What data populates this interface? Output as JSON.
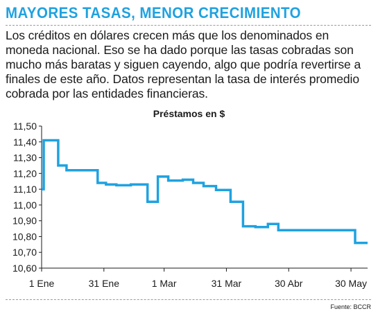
{
  "headline": "MAYORES TASAS, MENOR CRECIMIENTO",
  "intro": "Los créditos en dólares crecen más que los denominados en moneda nacional. Eso se ha dado porque las tasas cobradas son mucho más baratas y siguen cayendo, algo que podría revertirse a finales de este año. Datos representan la tasa de interés promedio cobrada por las entidades financieras.",
  "source": "Fuente: BCCR",
  "colors": {
    "headline": "#1fa2e0",
    "line": "#1fa2e0",
    "axis": "#1a1a1a"
  },
  "chart_data": {
    "type": "line",
    "title": "Préstamos en $",
    "xlabel": "",
    "ylabel": "",
    "ylim": [
      10.6,
      11.5
    ],
    "y_ticks": [
      "11,50",
      "11,40",
      "11,30",
      "11,20",
      "11,10",
      "11,00",
      "10,90",
      "10,80",
      "10,70",
      "10,60"
    ],
    "x_ticks": [
      "1 Ene",
      "31 Ene",
      "1 Mar",
      "31 Mar",
      "30 Abr",
      "30 May"
    ],
    "x_tick_days": [
      0,
      30,
      59,
      89,
      119,
      149
    ],
    "xlim_days": [
      0,
      157
    ],
    "grid": false,
    "series": [
      {
        "name": "",
        "points": [
          [
            0,
            11.1
          ],
          [
            1,
            11.41
          ],
          [
            4,
            11.41
          ],
          [
            5,
            11.41
          ],
          [
            6,
            11.41
          ],
          [
            7,
            11.41
          ],
          [
            8,
            11.25
          ],
          [
            9,
            11.25
          ],
          [
            10,
            11.25
          ],
          [
            11,
            11.25
          ],
          [
            12,
            11.22
          ],
          [
            13,
            11.22
          ],
          [
            14,
            11.22
          ],
          [
            15,
            11.22
          ],
          [
            16,
            11.22
          ],
          [
            17,
            11.22
          ],
          [
            18,
            11.22
          ],
          [
            19,
            11.22
          ],
          [
            20,
            11.22
          ],
          [
            21,
            11.22
          ],
          [
            22,
            11.22
          ],
          [
            23,
            11.22
          ],
          [
            24,
            11.22
          ],
          [
            25,
            11.22
          ],
          [
            26,
            11.22
          ],
          [
            27,
            11.14
          ],
          [
            28,
            11.14
          ],
          [
            29,
            11.14
          ],
          [
            30,
            11.14
          ],
          [
            31,
            11.13
          ],
          [
            32,
            11.13
          ],
          [
            33,
            11.13
          ],
          [
            34,
            11.13
          ],
          [
            35,
            11.13
          ],
          [
            36,
            11.125
          ],
          [
            37,
            11.125
          ],
          [
            38,
            11.125
          ],
          [
            39,
            11.125
          ],
          [
            40,
            11.125
          ],
          [
            41,
            11.125
          ],
          [
            42,
            11.125
          ],
          [
            43,
            11.13
          ],
          [
            45,
            11.13
          ],
          [
            46,
            11.13
          ],
          [
            49,
            11.13
          ],
          [
            50,
            11.13
          ],
          [
            51,
            11.02
          ],
          [
            52,
            11.02
          ],
          [
            53,
            11.02
          ],
          [
            54,
            11.02
          ],
          [
            55,
            11.02
          ],
          [
            56,
            11.18
          ],
          [
            57,
            11.18
          ],
          [
            58,
            11.18
          ],
          [
            59,
            11.18
          ],
          [
            60,
            11.18
          ],
          [
            61,
            11.155
          ],
          [
            62,
            11.155
          ],
          [
            63,
            11.155
          ],
          [
            64,
            11.155
          ],
          [
            65,
            11.155
          ],
          [
            66,
            11.155
          ],
          [
            67,
            11.155
          ],
          [
            68,
            11.16
          ],
          [
            69,
            11.16
          ],
          [
            70,
            11.16
          ],
          [
            71,
            11.16
          ],
          [
            72,
            11.16
          ],
          [
            73,
            11.14
          ],
          [
            74,
            11.14
          ],
          [
            75,
            11.14
          ],
          [
            76,
            11.14
          ],
          [
            77,
            11.14
          ],
          [
            78,
            11.12
          ],
          [
            79,
            11.12
          ],
          [
            80,
            11.12
          ],
          [
            81,
            11.12
          ],
          [
            82,
            11.12
          ],
          [
            83,
            11.12
          ],
          [
            84,
            11.095
          ],
          [
            85,
            11.095
          ],
          [
            86,
            11.095
          ],
          [
            87,
            11.095
          ],
          [
            88,
            11.095
          ],
          [
            89,
            11.095
          ],
          [
            90,
            11.095
          ],
          [
            91,
            11.02
          ],
          [
            92,
            11.02
          ],
          [
            93,
            11.02
          ],
          [
            94,
            11.02
          ],
          [
            95,
            11.02
          ],
          [
            96,
            11.02
          ],
          [
            97,
            10.865
          ],
          [
            98,
            10.865
          ],
          [
            99,
            10.865
          ],
          [
            100,
            10.865
          ],
          [
            101,
            10.865
          ],
          [
            102,
            10.865
          ],
          [
            103,
            10.86
          ],
          [
            104,
            10.86
          ],
          [
            105,
            10.86
          ],
          [
            106,
            10.86
          ],
          [
            107,
            10.86
          ],
          [
            108,
            10.86
          ],
          [
            109,
            10.88
          ],
          [
            110,
            10.88
          ],
          [
            111,
            10.88
          ],
          [
            112,
            10.88
          ],
          [
            113,
            10.88
          ],
          [
            114,
            10.84
          ],
          [
            115,
            10.84
          ],
          [
            116,
            10.84
          ],
          [
            117,
            10.84
          ],
          [
            118,
            10.84
          ],
          [
            119,
            10.84
          ],
          [
            120,
            10.84
          ],
          [
            121,
            10.84
          ],
          [
            122,
            10.84
          ],
          [
            123,
            10.84
          ],
          [
            124,
            10.84
          ],
          [
            125,
            10.84
          ],
          [
            126,
            10.84
          ],
          [
            127,
            10.84
          ],
          [
            128,
            10.84
          ],
          [
            129,
            10.84
          ],
          [
            130,
            10.84
          ],
          [
            131,
            10.84
          ],
          [
            132,
            10.84
          ],
          [
            133,
            10.84
          ],
          [
            134,
            10.84
          ],
          [
            135,
            10.84
          ],
          [
            136,
            10.84
          ],
          [
            137,
            10.84
          ],
          [
            138,
            10.84
          ],
          [
            139,
            10.84
          ],
          [
            140,
            10.84
          ],
          [
            141,
            10.84
          ],
          [
            142,
            10.84
          ],
          [
            143,
            10.84
          ],
          [
            144,
            10.84
          ],
          [
            145,
            10.84
          ],
          [
            146,
            10.84
          ],
          [
            147,
            10.84
          ],
          [
            148,
            10.84
          ],
          [
            149,
            10.84
          ],
          [
            150,
            10.84
          ],
          [
            151,
            10.76
          ],
          [
            152,
            10.76
          ],
          [
            153,
            10.76
          ],
          [
            154,
            10.76
          ],
          [
            155,
            10.76
          ],
          [
            156,
            10.76
          ],
          [
            157,
            10.76
          ]
        ]
      }
    ]
  }
}
